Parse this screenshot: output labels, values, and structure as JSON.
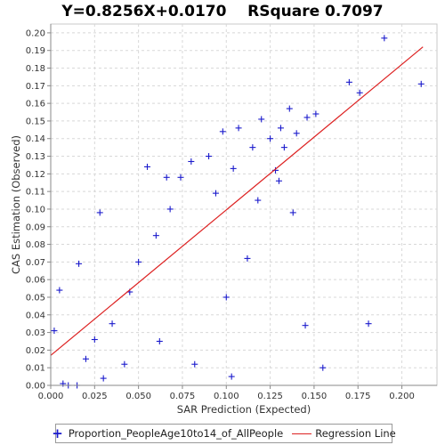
{
  "chart_data": {
    "type": "scatter",
    "title": "Y=0.8256X+0.0170    RSquare 0.7097",
    "xlabel": "SAR Prediction (Expected)",
    "ylabel": "CAS Estimation (Observed)",
    "xlim": [
      0,
      0.22
    ],
    "ylim": [
      0,
      0.205
    ],
    "x_ticks": [
      "0.000",
      "0.025",
      "0.050",
      "0.075",
      "0.100",
      "0.125",
      "0.150",
      "0.175",
      "0.200"
    ],
    "y_ticks": [
      "0.00",
      "0.01",
      "0.02",
      "0.03",
      "0.04",
      "0.05",
      "0.06",
      "0.07",
      "0.08",
      "0.09",
      "0.10",
      "0.11",
      "0.12",
      "0.13",
      "0.14",
      "0.15",
      "0.16",
      "0.17",
      "0.18",
      "0.19",
      "0.20"
    ],
    "grid": true,
    "legend_position": "bottom",
    "series": [
      {
        "name": "Proportion_PeopleAge10to14_of_AllPeople",
        "marker": "plus",
        "color": "#1a1acc",
        "points": [
          [
            0.19,
            0.197
          ],
          [
            0.211,
            0.171
          ],
          [
            0.17,
            0.172
          ],
          [
            0.176,
            0.166
          ],
          [
            0.181,
            0.035
          ],
          [
            0.155,
            0.01
          ],
          [
            0.145,
            0.034
          ],
          [
            0.103,
            0.005
          ],
          [
            0.151,
            0.154
          ],
          [
            0.136,
            0.157
          ],
          [
            0.146,
            0.152
          ],
          [
            0.138,
            0.098
          ],
          [
            0.12,
            0.151
          ],
          [
            0.115,
            0.135
          ],
          [
            0.125,
            0.14
          ],
          [
            0.131,
            0.146
          ],
          [
            0.08,
            0.127
          ],
          [
            0.074,
            0.118
          ],
          [
            0.098,
            0.144
          ],
          [
            0.107,
            0.146
          ],
          [
            0.05,
            0.07
          ],
          [
            0.02,
            0.015
          ],
          [
            0.03,
            0.004
          ],
          [
            0.042,
            0.012
          ],
          [
            0.007,
            0.001
          ],
          [
            0.01,
            0.0
          ],
          [
            0.015,
            0.0
          ],
          [
            0.016,
            0.069
          ],
          [
            0.002,
            0.031
          ],
          [
            0.005,
            0.054
          ],
          [
            0.055,
            0.124
          ],
          [
            0.066,
            0.118
          ],
          [
            0.09,
            0.13
          ],
          [
            0.094,
            0.109
          ],
          [
            0.028,
            0.098
          ],
          [
            0.062,
            0.025
          ],
          [
            0.082,
            0.012
          ],
          [
            0.1,
            0.05
          ],
          [
            0.112,
            0.072
          ],
          [
            0.118,
            0.105
          ],
          [
            0.128,
            0.122
          ],
          [
            0.13,
            0.116
          ],
          [
            0.133,
            0.135
          ],
          [
            0.14,
            0.143
          ],
          [
            0.104,
            0.123
          ],
          [
            0.068,
            0.1
          ],
          [
            0.06,
            0.085
          ],
          [
            0.045,
            0.053
          ],
          [
            0.035,
            0.035
          ],
          [
            0.025,
            0.026
          ]
        ]
      }
    ],
    "regression": {
      "name": "Regression Line",
      "color": "#dd2222",
      "slope": 0.8256,
      "intercept": 0.017,
      "x_range": [
        0,
        0.212
      ]
    }
  },
  "legend": {
    "points_label": "Proportion_PeopleAge10to14_of_AllPeople",
    "line_label": "Regression Line"
  }
}
